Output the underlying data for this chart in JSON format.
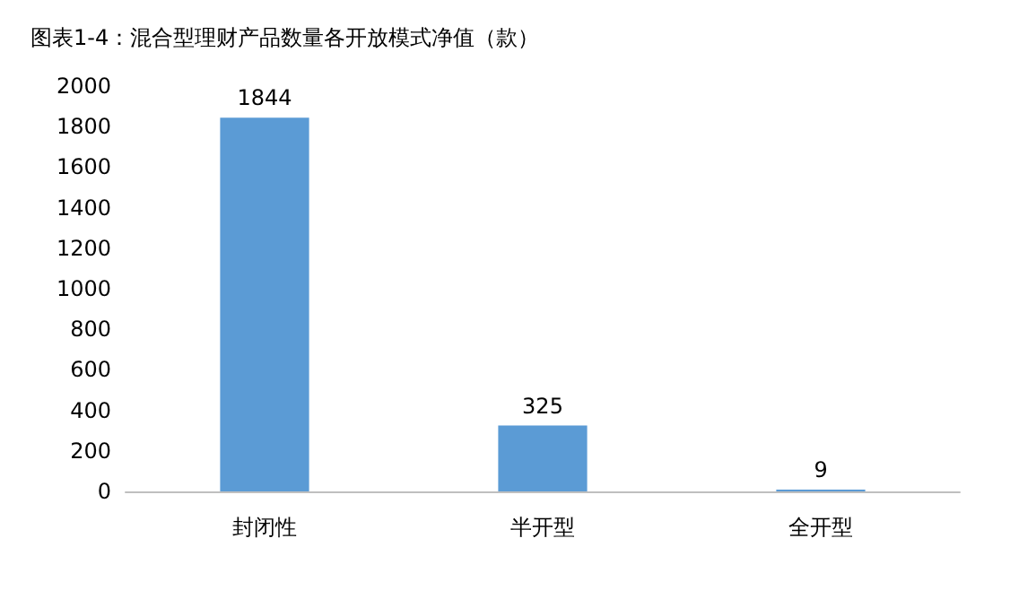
{
  "chart_data": {
    "type": "bar",
    "title": "图表1-4：混合型理财产品数量各开放模式净值（款）",
    "categories": [
      "封闭性",
      "半开型",
      "全开型"
    ],
    "values": [
      1844,
      325,
      9
    ],
    "color": "#5b9bd5",
    "ylim": [
      0,
      2000
    ],
    "yticks": [
      0,
      200,
      400,
      600,
      800,
      1000,
      1200,
      1400,
      1600,
      1800,
      2000
    ],
    "grid": false,
    "data_labels": true
  }
}
